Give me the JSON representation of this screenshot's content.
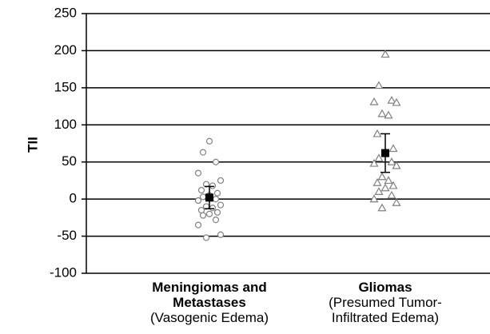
{
  "chart_data": {
    "type": "dot",
    "y_label": "TII",
    "categories": [
      "Meningiomas and Metastases",
      "Gliomas"
    ],
    "category_notes": [
      "(Vasogenic Edema)",
      "(Presumed Tumor-Infiltrated Edema)"
    ],
    "points": [
      [
        78,
        63,
        50,
        35,
        25,
        20,
        18,
        12,
        8,
        5,
        3,
        0,
        -2,
        -8,
        -10,
        -12,
        -15,
        -18,
        -20,
        -22,
        -28,
        -35,
        -48,
        -52
      ],
      [
        195,
        153,
        133,
        131,
        130,
        115,
        113,
        88,
        68,
        63,
        55,
        50,
        48,
        45,
        30,
        25,
        22,
        18,
        15,
        10,
        5,
        0,
        -5,
        -12
      ]
    ],
    "markers": [
      "circle",
      "triangle"
    ],
    "point_color": "#808080",
    "means": [
      2,
      62
    ],
    "errors": [
      15,
      26
    ],
    "mean_color": "#000000",
    "ylim": [
      -100,
      250
    ],
    "yticks": [
      -100,
      -50,
      0,
      50,
      100,
      150,
      200,
      250
    ],
    "grid": true
  }
}
